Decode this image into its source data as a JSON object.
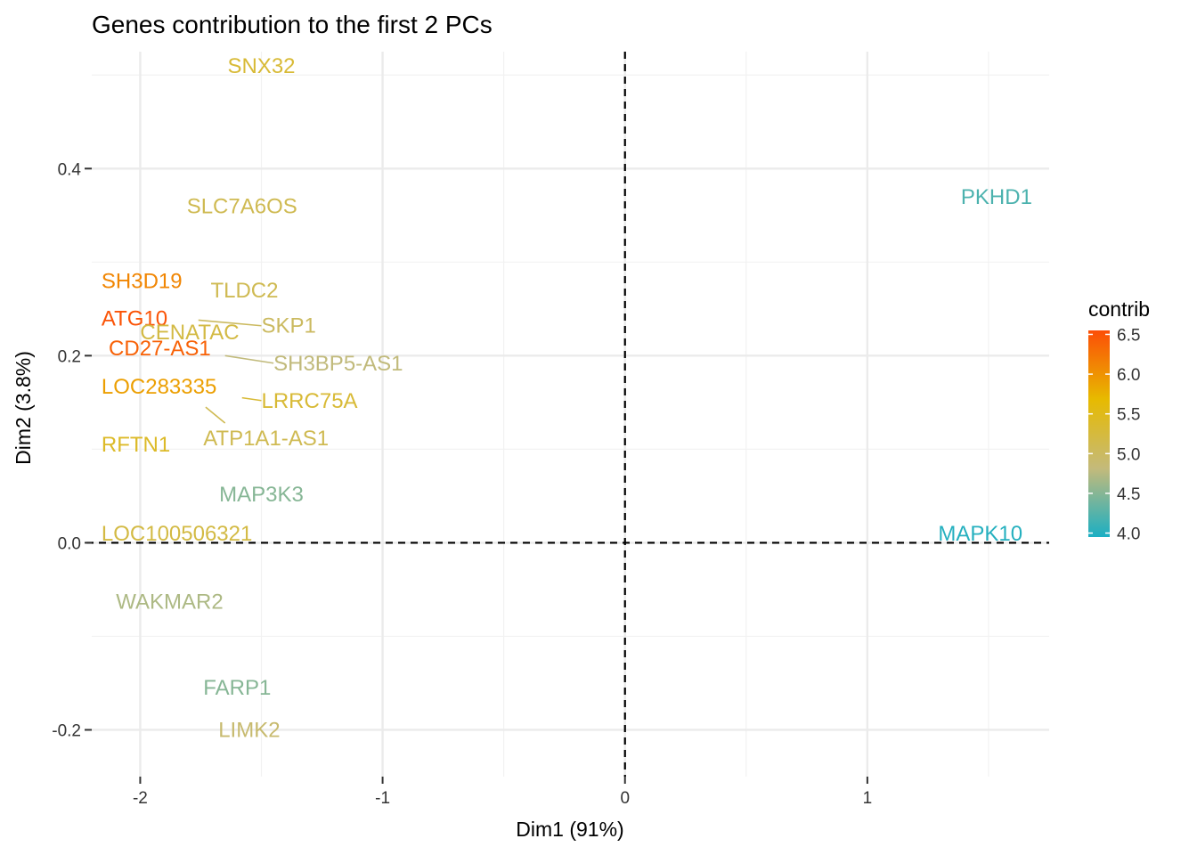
{
  "chart_data": {
    "type": "scatter",
    "title": "Genes contribution to the first 2 PCs",
    "xlabel": "Dim1 (91%)",
    "ylabel": "Dim2 (3.8%)",
    "xlim": [
      -2.2,
      1.75
    ],
    "ylim": [
      -0.25,
      0.525
    ],
    "xticks": [
      -2,
      -1,
      0,
      1
    ],
    "xtick_labels": [
      "-2",
      "-1",
      "0",
      "1"
    ],
    "yticks": [
      -0.2,
      0.0,
      0.2,
      0.4
    ],
    "ytick_labels": [
      "-0.2",
      "0.0",
      "0.2",
      "0.4"
    ],
    "grid": true,
    "reference_lines": {
      "x": 0,
      "y": 0,
      "style": "dashed"
    },
    "legend": {
      "title": "contrib",
      "placement": "right",
      "range": [
        3.95,
        6.55
      ],
      "ticks": [
        4.0,
        4.5,
        5.0,
        5.5,
        6.0,
        6.5
      ],
      "tick_labels": [
        "4.0",
        "4.5",
        "5.0",
        "5.5",
        "6.0",
        "6.5"
      ],
      "colors": [
        "#1BAFC3",
        "#C4BA7A",
        "#E7BA00",
        "#FC4E07"
      ]
    },
    "points": [
      {
        "label": "SNX32",
        "x": -1.5,
        "y": 0.51,
        "contrib": 5.3
      },
      {
        "label": "SLC7A6OS",
        "x": -1.58,
        "y": 0.36,
        "contrib": 5.1
      },
      {
        "label": "PKHD1",
        "x": 1.5,
        "y": 0.37,
        "contrib": 4.2
      },
      {
        "label": "SH3D19",
        "x": -1.97,
        "y": 0.28,
        "contrib": 6.1
      },
      {
        "label": "TLDC2",
        "x": -1.57,
        "y": 0.27,
        "contrib": 5.1
      },
      {
        "label": "ATG10",
        "x": -1.99,
        "y": 0.24,
        "contrib": 6.5
      },
      {
        "label": "CENATAC",
        "x": -1.84,
        "y": 0.225,
        "contrib": 5.2
      },
      {
        "label": "SKP1",
        "x": -1.76,
        "y": 0.238,
        "contrib": 5.0
      },
      {
        "label": "CD27-AS1",
        "x": -1.93,
        "y": 0.21,
        "contrib": 6.4
      },
      {
        "label": "SH3BP5-AS1",
        "x": -1.65,
        "y": 0.2,
        "contrib": 4.8
      },
      {
        "label": "LOC283335",
        "x": -1.91,
        "y": 0.165,
        "contrib": 5.9
      },
      {
        "label": "LRRC75A",
        "x": -1.58,
        "y": 0.155,
        "contrib": 5.3
      },
      {
        "label": "ATP1A1-AS1",
        "x": -1.73,
        "y": 0.145,
        "contrib": 5.1
      },
      {
        "label": "RFTN1",
        "x": -2.0,
        "y": 0.105,
        "contrib": 5.4
      },
      {
        "label": "MAP3K3",
        "x": -1.5,
        "y": 0.052,
        "contrib": 4.5
      },
      {
        "label": "LOC100506321",
        "x": -1.96,
        "y": 0.01,
        "contrib": 5.2
      },
      {
        "label": "MAPK10",
        "x": 1.5,
        "y": 0.01,
        "contrib": 4.0
      },
      {
        "label": "WAKMAR2",
        "x": -1.75,
        "y": -0.063,
        "contrib": 4.7
      },
      {
        "label": "FARP1",
        "x": -1.6,
        "y": -0.155,
        "contrib": 4.5
      },
      {
        "label": "LIMK2",
        "x": -1.55,
        "y": -0.2,
        "contrib": 4.9
      }
    ],
    "connectors": [
      {
        "label": "SKP1",
        "from": [
          -1.76,
          0.238
        ],
        "to": [
          -1.5,
          0.232
        ]
      },
      {
        "label": "SH3BP5-AS1",
        "from": [
          -1.65,
          0.2
        ],
        "to": [
          -1.45,
          0.192
        ]
      },
      {
        "label": "LRRC75A",
        "from": [
          -1.58,
          0.155
        ],
        "to": [
          -1.5,
          0.152
        ]
      },
      {
        "label": "ATP1A1-AS1",
        "from": [
          -1.73,
          0.145
        ],
        "to": [
          -1.65,
          0.128
        ]
      }
    ]
  }
}
